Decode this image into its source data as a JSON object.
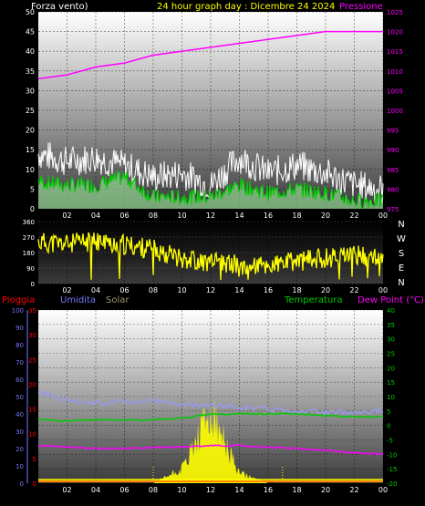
{
  "header": {
    "left": "Forza vento)",
    "center": "24 hour graph day : Dicembre 24 2024",
    "right": "Pressione"
  },
  "colors": {
    "white": "#ffffff",
    "yellow": "#ffff00",
    "magenta": "#ff00ff",
    "green": "#00cc00",
    "lightgreen": "#aaffaa",
    "blue": "#7777ff",
    "lavender": "#9999ee",
    "red": "#ff0000",
    "orange": "#ff8800",
    "olive": "#999966"
  },
  "x_ticks": [
    "02",
    "04",
    "06",
    "08",
    "10",
    "12",
    "14",
    "16",
    "18",
    "20",
    "22",
    "00"
  ],
  "wind_dir_letters": [
    "N",
    "W",
    "S",
    "E",
    "N"
  ],
  "chart_data": [
    {
      "type": "line",
      "ylabel": "Forza vento)",
      "ylim": [
        0,
        50
      ],
      "y_ticks": [
        0,
        5,
        10,
        15,
        20,
        25,
        30,
        35,
        40,
        45,
        50
      ],
      "y2label": "Pressione",
      "y2lim": [
        975,
        1025
      ],
      "y2_ticks": [
        975,
        980,
        985,
        990,
        995,
        1000,
        1005,
        1010,
        1015,
        1020,
        1025
      ],
      "x": [
        0,
        2,
        4,
        6,
        8,
        10,
        12,
        14,
        16,
        18,
        20,
        22,
        24
      ],
      "series": [
        {
          "name": "gust",
          "values": [
            14,
            12,
            13,
            11,
            8,
            9,
            6,
            13,
            9,
            11,
            9,
            6,
            5
          ]
        },
        {
          "name": "speed",
          "values": [
            7,
            6,
            6,
            8,
            3,
            3,
            3,
            6,
            4,
            5,
            4,
            2,
            2
          ]
        },
        {
          "name": "Pressione",
          "values": [
            1008,
            1009,
            1011,
            1012,
            1014,
            1015,
            1016,
            1017,
            1018,
            1019,
            1020,
            1020,
            1020
          ]
        }
      ],
      "grid": true
    },
    {
      "type": "line",
      "ylim": [
        0,
        360
      ],
      "y_ticks": [
        0,
        90,
        180,
        270,
        360
      ],
      "x": [
        0,
        2,
        4,
        6,
        8,
        10,
        12,
        14,
        16,
        18,
        20,
        22,
        24
      ],
      "series": [
        {
          "name": "direction",
          "values": [
            240,
            230,
            245,
            225,
            200,
            150,
            120,
            110,
            100,
            130,
            150,
            170,
            140
          ]
        }
      ]
    },
    {
      "type": "line",
      "legend": [
        "Pioggia",
        "Umidita",
        "Solar",
        "Temperatura",
        "Dew Point (°C)"
      ],
      "ylim": [
        0,
        100
      ],
      "y_ticks": [
        0,
        10,
        20,
        30,
        40,
        50,
        60,
        70,
        80,
        90,
        100
      ],
      "y_mid_ticks": [
        0,
        5,
        10,
        15,
        20,
        25,
        30,
        35
      ],
      "y2lim": [
        -20,
        40
      ],
      "y2_ticks": [
        -20,
        -15,
        -10,
        -5,
        0,
        5,
        10,
        15,
        20,
        25,
        30,
        35,
        40
      ],
      "x": [
        0,
        2,
        4,
        6,
        8,
        10,
        12,
        14,
        16,
        18,
        20,
        22,
        24
      ],
      "series": [
        {
          "name": "Umidita",
          "values": [
            53,
            48,
            46,
            47,
            48,
            45,
            45,
            44,
            43,
            42,
            41,
            41,
            42
          ]
        },
        {
          "name": "Temperatura",
          "values": [
            2,
            1.5,
            2,
            2,
            2,
            2.5,
            4,
            4,
            4,
            4,
            3.5,
            3,
            3
          ]
        },
        {
          "name": "Dew Point (°C)",
          "values": [
            -7,
            -7.5,
            -8,
            -8,
            -7.5,
            -7.5,
            -7,
            -7,
            -7.5,
            -8,
            -8.5,
            -9.5,
            -10
          ]
        },
        {
          "name": "Solar",
          "values": [
            0,
            0,
            0,
            0,
            0,
            3,
            14,
            2,
            0,
            0,
            0,
            0,
            0
          ]
        },
        {
          "name": "Pioggia",
          "values": [
            0,
            0,
            0,
            0,
            0,
            0,
            0,
            0,
            0,
            0,
            0,
            0,
            0
          ]
        }
      ],
      "grid": true
    }
  ]
}
